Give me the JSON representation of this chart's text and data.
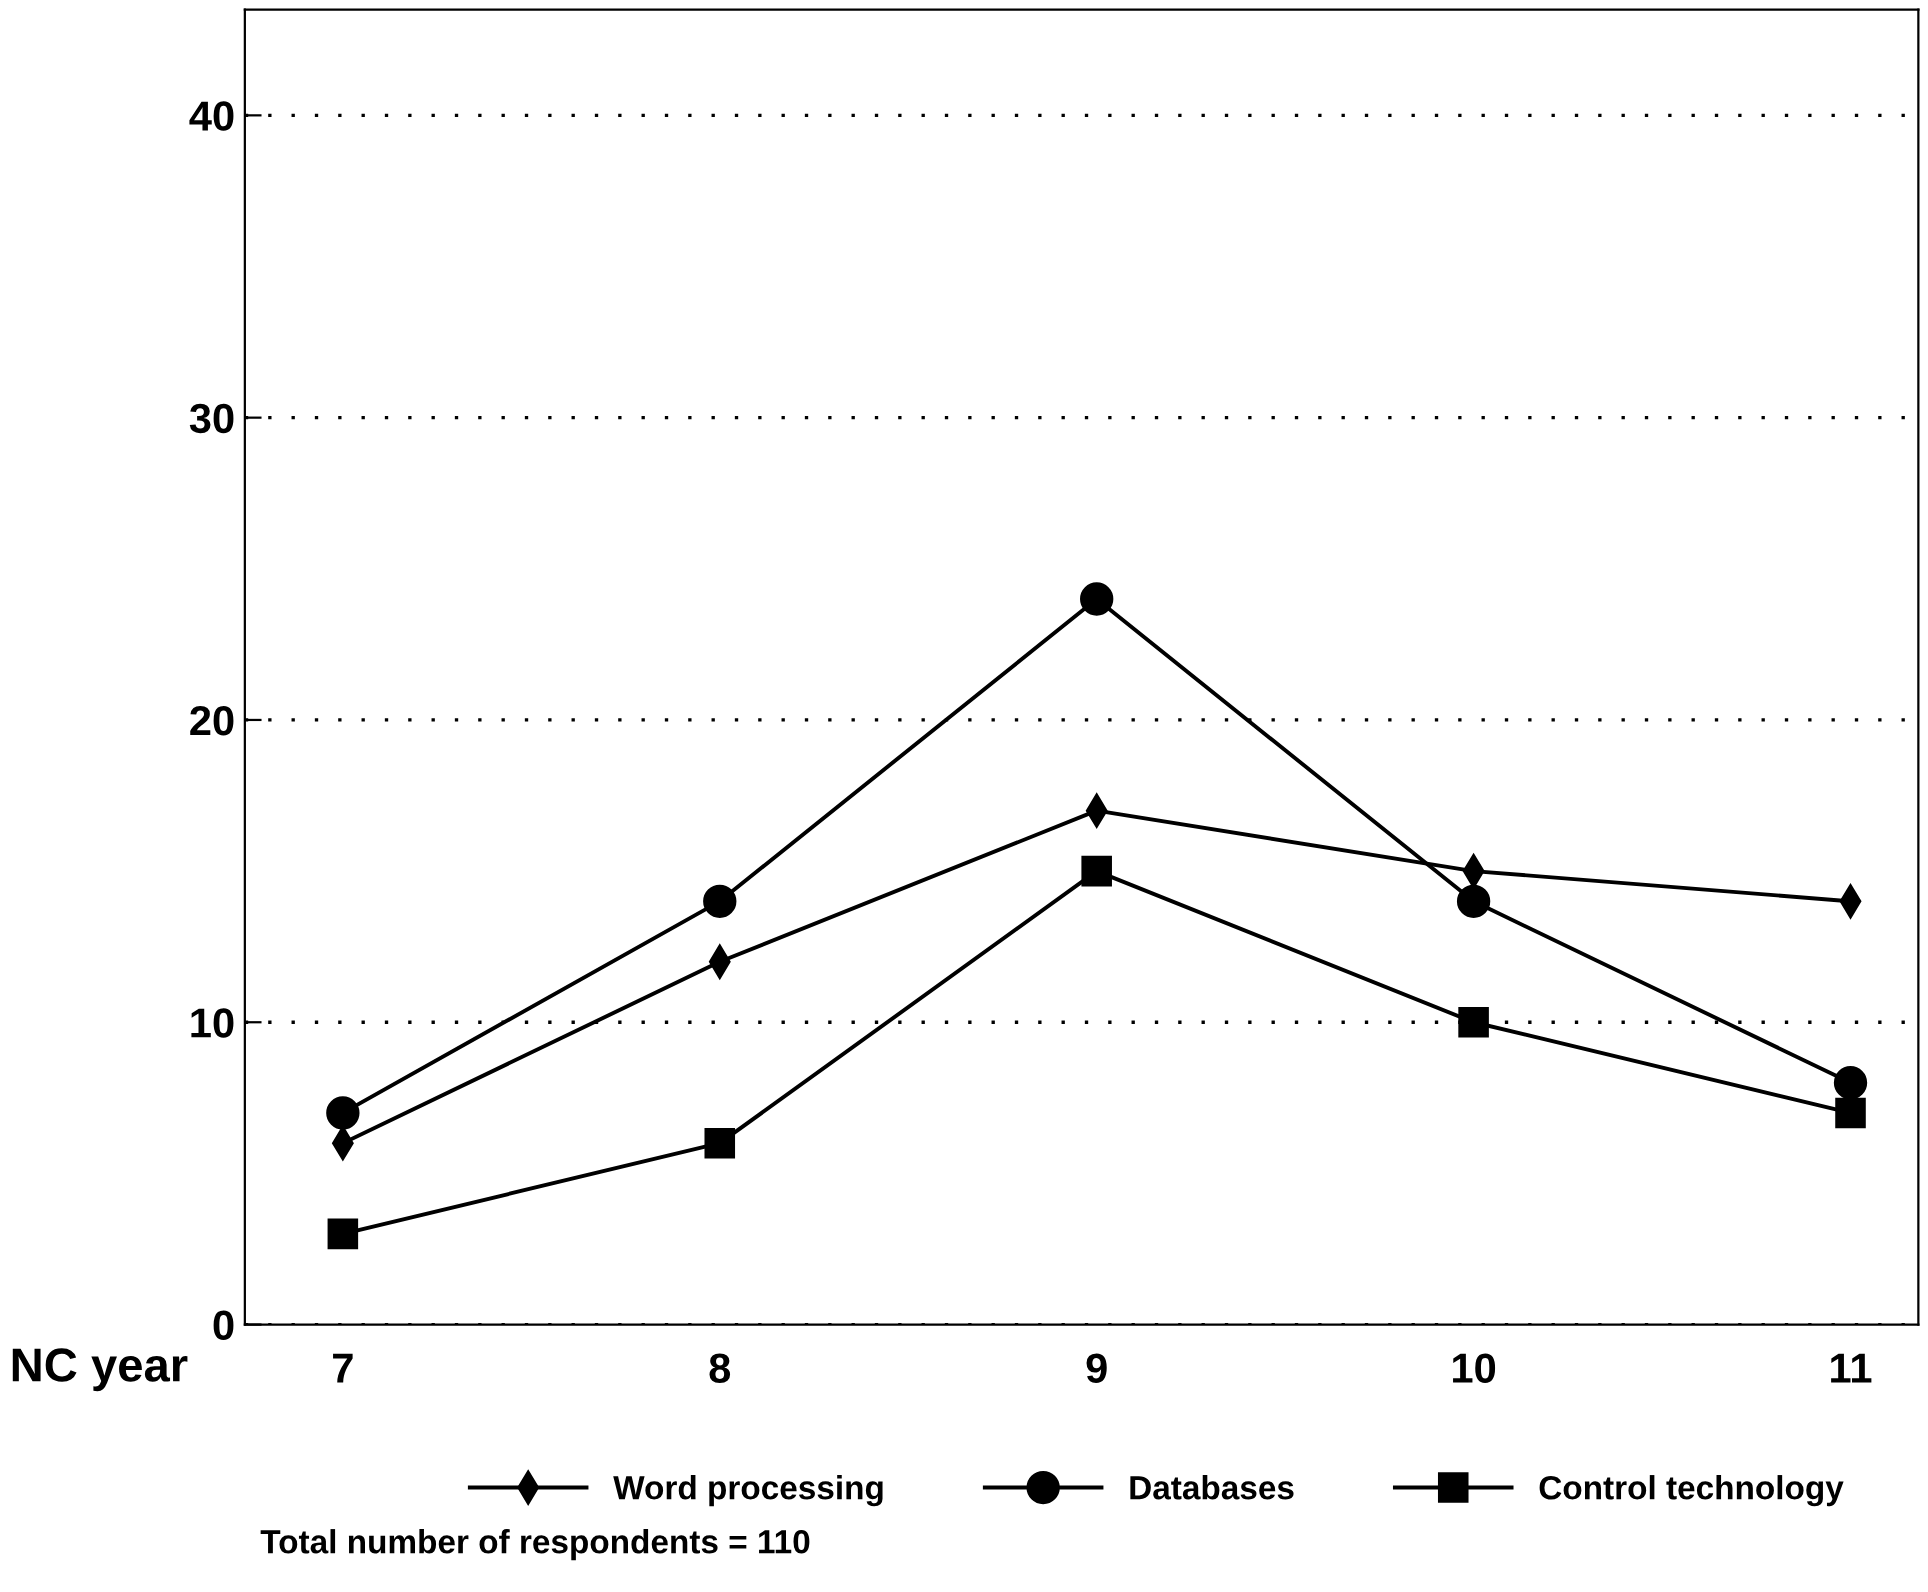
{
  "chart_data": {
    "type": "line",
    "xlabel": "NC year",
    "categories": [
      "7",
      "8",
      "9",
      "10",
      "11"
    ],
    "series": [
      {
        "name": "Word processing",
        "color": "#000000",
        "marker": "diamond",
        "values": [
          6,
          12,
          17,
          15,
          14
        ]
      },
      {
        "name": "Databases",
        "color": "#000000",
        "marker": "circle",
        "values": [
          7,
          14,
          24,
          14,
          8
        ]
      },
      {
        "name": "Control technology",
        "color": "#000000",
        "marker": "square",
        "values": [
          3,
          6,
          15,
          10,
          7
        ]
      }
    ],
    "ylim": [
      0,
      43.5
    ],
    "yticks": [
      0,
      10,
      20,
      30,
      40
    ],
    "grid": "y",
    "legend": "bottom",
    "line_style": "solid",
    "annotations": [
      "Total number of respondents = 110"
    ]
  }
}
